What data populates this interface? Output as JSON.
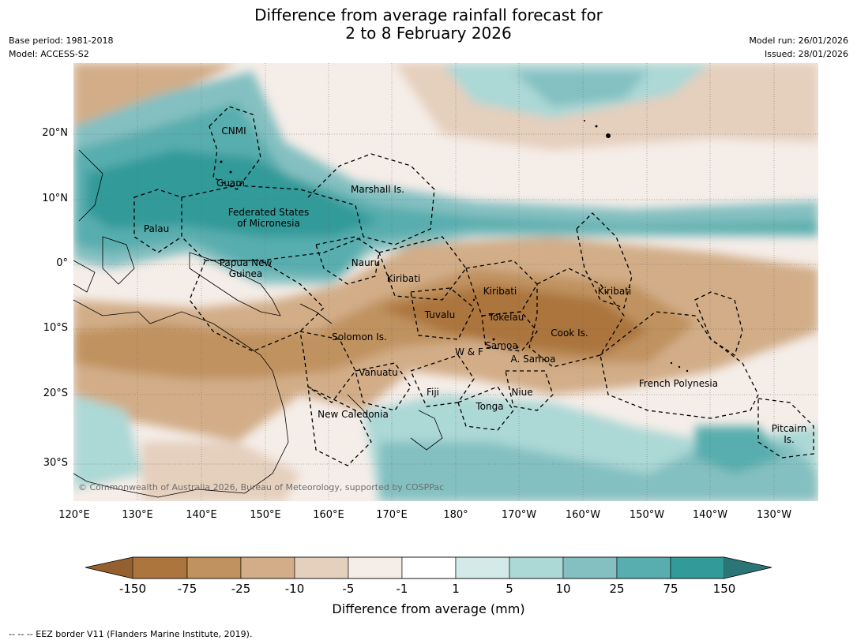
{
  "title": {
    "line1": "Difference from average rainfall forecast for",
    "line2": "2 to 8 February 2026"
  },
  "meta": {
    "base_period": "Base period: 1981-2018",
    "model": "Model: ACCESS-S2",
    "model_run": "Model run: 26/01/2026",
    "issued": "Issued: 28/01/2026"
  },
  "axes": {
    "latitudes": [
      "20°N",
      "10°N",
      "0°",
      "10°S",
      "20°S",
      "30°S"
    ],
    "longitudes": [
      "120°E",
      "130°E",
      "140°E",
      "150°E",
      "160°E",
      "170°E",
      "180°",
      "170°W",
      "160°W",
      "150°W",
      "140°W",
      "130°W"
    ]
  },
  "places": {
    "cnmi": "CNMI",
    "guam": "Guam",
    "marshall": "Marshall Is.",
    "fsm1": "Federated States",
    "fsm2": "of Micronesia",
    "palau": "Palau",
    "png1": "Papua New",
    "png2": "Guinea",
    "nauru": "Nauru",
    "kiribati_w": "Kiribati",
    "kiribati_c": "Kiribati",
    "kiribati_e": "Kiribati",
    "tuvalu": "Tuvalu",
    "tokelau": "Tokelau",
    "cook": "Cook Is.",
    "solomon": "Solomon Is.",
    "samoa": "Samoa",
    "wf": "W & F",
    "asamoa": "A. Samoa",
    "vanuatu": "Vanuatu",
    "fiji": "Fiji",
    "niue": "Niue",
    "tonga": "Tonga",
    "frpoly": "French Polynesia",
    "newcal": "New Caledonia",
    "pitcairn1": "Pitcairn",
    "pitcairn2": "Is."
  },
  "copyright": "© Commonwealth of Australia 2026, Bureau of Meteorology, supported by COSPPac",
  "colorbar": {
    "title": "Difference from average (mm)",
    "ticks": [
      "-150",
      "-75",
      "-25",
      "-10",
      "-5",
      "-1",
      "1",
      "5",
      "10",
      "25",
      "75",
      "150"
    ],
    "colors": [
      "#95602f",
      "#ab753d",
      "#c0925f",
      "#d2ad88",
      "#e5cfbd",
      "#f5ede8",
      "#ffffff",
      "#d3eae8",
      "#acd8d6",
      "#84c0c1",
      "#58adae",
      "#329a99",
      "#2b7576"
    ]
  },
  "eez_note": "--  --  -- EEZ border V11 (Flanders Marine Institute, 2019)."
}
